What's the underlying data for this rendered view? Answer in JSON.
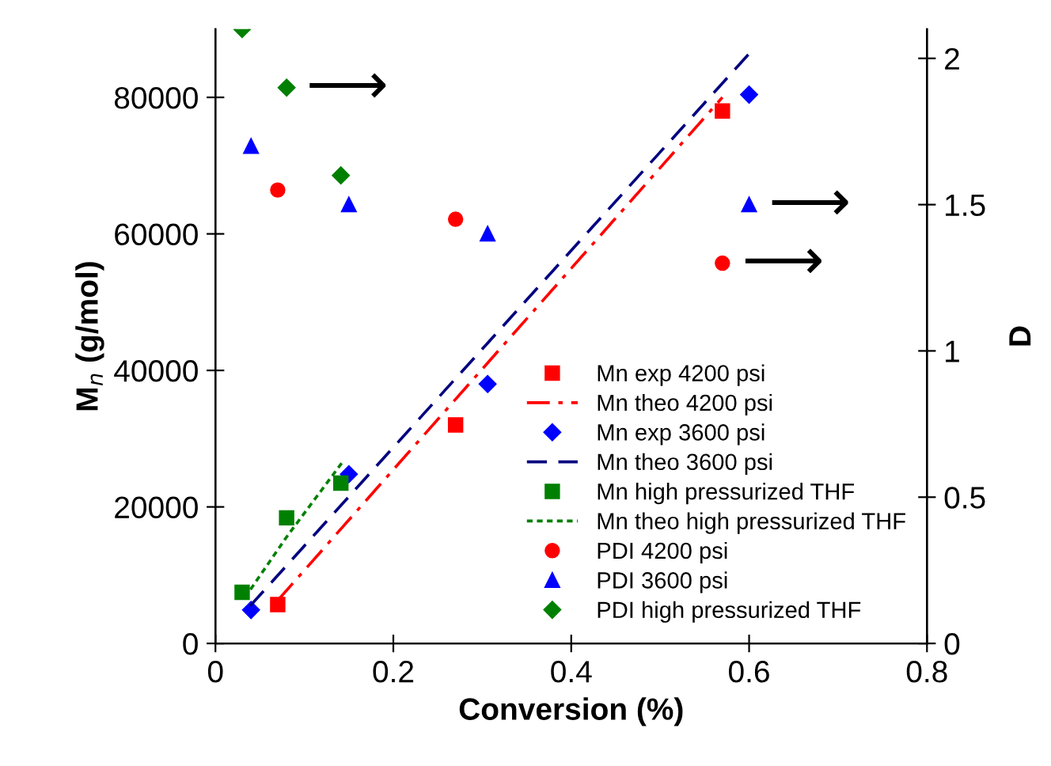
{
  "chart_data": {
    "type": "scatter",
    "xlabel": "Conversion (%)",
    "ylabel": "M$_{n}$ (g/mol)",
    "y2label": "D",
    "xlim": [
      0,
      0.8
    ],
    "xticks": [
      0,
      0.2,
      0.4,
      0.6,
      0.8
    ],
    "ylim": [
      0,
      90000
    ],
    "yticks": [
      0,
      20000,
      40000,
      60000,
      80000
    ],
    "y2lim": [
      0,
      2.1
    ],
    "y2ticks": [
      0,
      0.5,
      1,
      1.5,
      2
    ],
    "grid": false,
    "legend": "bottom right",
    "series": [
      {
        "name": "Mn exp 4200 psi",
        "marker": "square",
        "color": "#ff0000",
        "x": [
          0.07,
          0.27,
          0.57
        ],
        "values": [
          5700,
          32000,
          78000
        ]
      },
      {
        "name": "Mn theo 4200 psi",
        "type": "line",
        "marker": "none",
        "line_style": "dashdot",
        "color": "#ff0000",
        "x": [
          0.07,
          0.57
        ],
        "values": [
          6300,
          80000
        ]
      },
      {
        "name": "Mn exp 3600 psi",
        "marker": "diamond",
        "color": "#0000ff",
        "x": [
          0.04,
          0.15,
          0.306,
          0.6
        ],
        "values": [
          4900,
          24800,
          38000,
          80400
        ]
      },
      {
        "name": "Mn theo 3600 psi",
        "type": "line",
        "marker": "none",
        "line_style": "dashed",
        "color": "#000080",
        "x": [
          0.039,
          0.6
        ],
        "values": [
          5500,
          86400
        ]
      },
      {
        "name": "Mn high pressurized THF",
        "marker": "square",
        "color": "#008000",
        "x": [
          0.03,
          0.08,
          0.141
        ],
        "values": [
          7500,
          18400,
          23500
        ]
      },
      {
        "name": "Mn theo high pressurized THF",
        "type": "line",
        "marker": "none",
        "line_style": "dotted",
        "color": "#008000",
        "x": [
          0.033,
          0.08,
          0.143
        ],
        "values": [
          6700,
          15600,
          26600
        ]
      },
      {
        "name": "PDI 4200 psi",
        "marker": "circle",
        "axis": "y2",
        "color": "#ff0000",
        "x": [
          0.07,
          0.27,
          0.57
        ],
        "values": [
          1.55,
          1.45,
          1.3
        ]
      },
      {
        "name": "PDI 3600 psi",
        "marker": "triangle",
        "axis": "y2",
        "color": "#0000ff",
        "x": [
          0.04,
          0.15,
          0.306,
          0.6
        ],
        "values": [
          1.7,
          1.5,
          1.4,
          1.5
        ]
      },
      {
        "name": "PDI high pressurized THF",
        "marker": "diamond",
        "axis": "y2",
        "color": "#008000",
        "x": [
          0.03,
          0.08,
          0.141
        ],
        "values": [
          2.1,
          1.9,
          1.6
        ]
      }
    ],
    "annotations": [
      "⟶",
      "⟶",
      "⟶"
    ]
  }
}
